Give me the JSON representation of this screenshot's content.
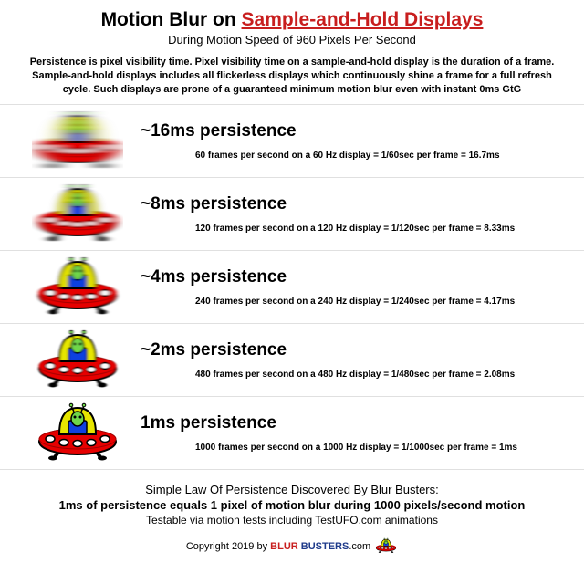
{
  "colors": {
    "link": "#c81e1e",
    "ufo_body": "#e60000",
    "ufo_body_dark": "#a00000",
    "dome": "#e6e600",
    "dome_dark": "#b0b000",
    "alien": "#6fd64a",
    "alien_dark": "#2a7a1a",
    "window": "#1040e0",
    "black": "#000000",
    "divider": "#e0e0e0"
  },
  "title_prefix": "Motion Blur on ",
  "title_link": "Sample-and-Hold Displays",
  "subtitle": "During Motion Speed of 960 Pixels Per Second",
  "intro": "Persistence is pixel visibility time. Pixel visibility time on a sample-and-hold display is the duration of a frame. Sample-and-hold displays includes all flickerless displays which continuously shine a frame for a full refresh cycle. Such displays are prone of a guaranteed minimum motion blur even with instant 0ms GtG",
  "rows": [
    {
      "blur": 10,
      "label": "~16ms persistence",
      "detail": "60 frames per second on a 60 Hz display = 1/60sec per frame = 16.7ms"
    },
    {
      "blur": 5,
      "label": "~8ms persistence",
      "detail": "120 frames per second on a 120 Hz display = 1/120sec per frame = 8.33ms"
    },
    {
      "blur": 2.5,
      "label": "~4ms persistence",
      "detail": "240 frames per second on a 240 Hz display = 1/240sec per frame = 4.17ms"
    },
    {
      "blur": 1.2,
      "label": "~2ms persistence",
      "detail": "480 frames per second on a 480 Hz display = 1/480sec per frame = 2.08ms"
    },
    {
      "blur": 0,
      "label": "1ms persistence",
      "detail": "1000 frames per second on a 1000 Hz display = 1/1000sec per frame = 1ms"
    }
  ],
  "law_line1": "Simple Law Of Persistence Discovered By Blur Busters:",
  "law_line2": "1ms of persistence equals 1 pixel of motion blur during 1000 pixels/second motion",
  "law_line3": "Testable via motion tests including TestUFO.com animations",
  "copyright_prefix": "Copyright 2019 by ",
  "brand1": "BLUR ",
  "brand2": "BUSTERS",
  "brand_suffix": ".com"
}
